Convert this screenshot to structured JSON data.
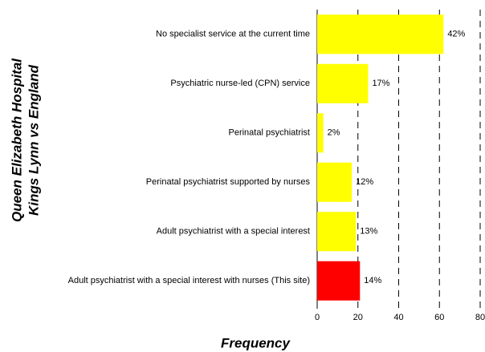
{
  "chart_data": {
    "type": "hbar",
    "y_label": [
      "Queen Elizabeth Hospital",
      "Kings Lynn vs England"
    ],
    "x_label": "Frequency",
    "categories": [
      "No specialist service at the current time",
      "Psychiatric nurse-led (CPN) service",
      "Perinatal psychiatrist",
      "Perinatal psychiatrist supported by nurses",
      "Adult psychiatrist with a special interest",
      "Adult psychiatrist with a special interest with nurses (This site)"
    ],
    "values": [
      62,
      25,
      3,
      17,
      19,
      21
    ],
    "percent_labels": [
      "42%",
      "17%",
      "2%",
      "12%",
      "13%",
      "14%"
    ],
    "colors": [
      "#ffff00",
      "#ffff00",
      "#ffff00",
      "#ffff00",
      "#ffff00",
      "#ff0000"
    ],
    "xlim": [
      0,
      80
    ],
    "xticks": [
      0,
      20,
      40,
      60,
      80
    ],
    "grid": true
  }
}
